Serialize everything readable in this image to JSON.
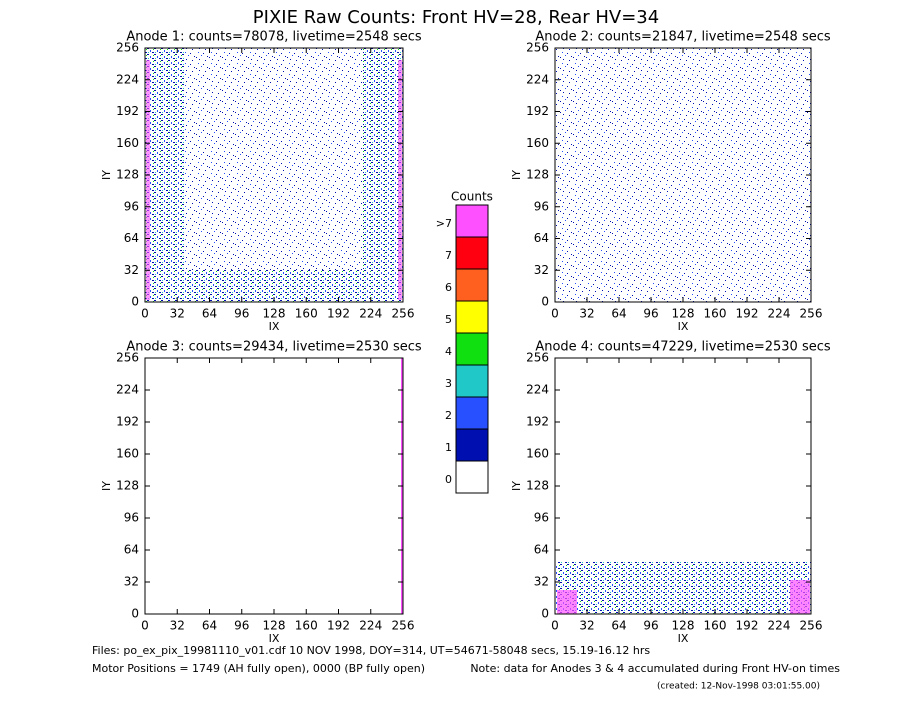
{
  "title": "PIXIE Raw Counts:  Front HV=28, Rear HV=34",
  "chart_data": [
    {
      "type": "heatmap",
      "title": "Anode 1: counts=78078, livetime=2548 secs",
      "x_label": "IX",
      "y_label": "IY",
      "xlim": [
        0,
        256
      ],
      "ylim": [
        0,
        256
      ],
      "xticks": [
        0,
        32,
        64,
        96,
        128,
        160,
        192,
        224,
        256
      ],
      "yticks": [
        0,
        32,
        64,
        96,
        128,
        160,
        192,
        224,
        256
      ]
    },
    {
      "type": "heatmap",
      "title": "Anode 2: counts=21847, livetime=2548 secs",
      "x_label": "IX",
      "y_label": "IY",
      "xlim": [
        0,
        256
      ],
      "ylim": [
        0,
        256
      ],
      "xticks": [
        0,
        32,
        64,
        96,
        128,
        160,
        192,
        224,
        256
      ],
      "yticks": [
        0,
        32,
        64,
        96,
        128,
        160,
        192,
        224,
        256
      ]
    },
    {
      "type": "heatmap",
      "title": "Anode 3: counts=29434, livetime=2530 secs",
      "x_label": "IX",
      "y_label": "IY",
      "xlim": [
        0,
        256
      ],
      "ylim": [
        0,
        256
      ],
      "xticks": [
        0,
        32,
        64,
        96,
        128,
        160,
        192,
        224,
        256
      ],
      "yticks": [
        0,
        32,
        64,
        96,
        128,
        160,
        192,
        224,
        256
      ]
    },
    {
      "type": "heatmap",
      "title": "Anode 4: counts=47229, livetime=2530 secs",
      "x_label": "IX",
      "y_label": "IY",
      "xlim": [
        0,
        256
      ],
      "ylim": [
        0,
        256
      ],
      "xticks": [
        0,
        32,
        64,
        96,
        128,
        160,
        192,
        224,
        256
      ],
      "yticks": [
        0,
        32,
        64,
        96,
        128,
        160,
        192,
        224,
        256
      ]
    }
  ],
  "colorbar": {
    "title": "Counts",
    "labels": [
      "0",
      "1",
      "2",
      "3",
      "4",
      "5",
      "6",
      "7",
      ">7"
    ],
    "colors": [
      "#ffffff",
      "#0010b0",
      "#2850ff",
      "#20c8c8",
      "#10e010",
      "#ffff00",
      "#ff6020",
      "#ff0010",
      "#ff50ff"
    ]
  },
  "footer": {
    "files": "Files: po_ex_pix_19981110_v01.cdf    10 NOV 1998, DOY=314, UT=54671-58048 secs, 15.19-16.12 hrs",
    "motor": "Motor Positions = 1749 (AH fully open), 0000 (BP fully open)",
    "note": "Note: data for Anodes 3 & 4 accumulated during Front HV-on times",
    "created": "(created: 12-Nov-1998 03:01:55.00)"
  }
}
